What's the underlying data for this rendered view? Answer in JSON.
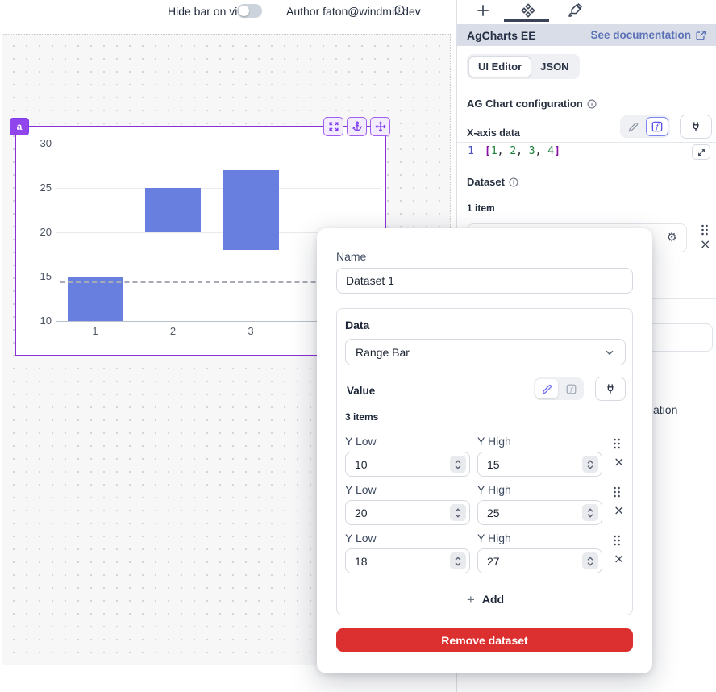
{
  "topbar": {
    "hide_bar_label": "Hide bar on view",
    "toggle_state": "off",
    "author_label": "Author faton@windmill.dev"
  },
  "canvas": {
    "component_badge": "a"
  },
  "chart_data": {
    "type": "bar",
    "variant": "vertical-range-bar",
    "x": [
      1,
      2,
      3,
      4
    ],
    "series": [
      {
        "name": "Dataset 1",
        "ranges": [
          [
            10,
            15
          ],
          [
            20,
            25
          ],
          [
            18,
            27
          ]
        ]
      }
    ],
    "ylim": [
      10,
      30
    ],
    "yticks": [
      10,
      15,
      20,
      25,
      30
    ],
    "xticks": [
      "1",
      "2",
      "3",
      "4"
    ],
    "grid": true,
    "legend": "none",
    "bar_color": "#687fe0",
    "crosshair_y": 14.5
  },
  "panel": {
    "title": "AgCharts EE",
    "doc_link_label": "See documentation",
    "editor_tabs": {
      "ui": "UI Editor",
      "json": "JSON"
    },
    "config_label": "AG Chart configuration",
    "xaxis_label": "X-axis data",
    "code_line_number": "1",
    "code_content": "[1, 2, 3, 4]",
    "dataset_label": "Dataset",
    "items_count": "1 item",
    "occluded_fragment": "ation"
  },
  "modal": {
    "name_label": "Name",
    "name_value": "Dataset 1",
    "data_label": "Data",
    "data_type_value": "Range Bar",
    "value_label": "Value",
    "items_count": "3 items",
    "rows": [
      {
        "low_label": "Y Low",
        "high_label": "Y High",
        "low": "10",
        "high": "15"
      },
      {
        "low_label": "Y Low",
        "high_label": "Y High",
        "low": "20",
        "high": "25"
      },
      {
        "low_label": "Y Low",
        "high_label": "Y High",
        "low": "18",
        "high": "27"
      }
    ],
    "add_label": "Add",
    "remove_label": "Remove dataset"
  },
  "colors": {
    "accent_purple": "#7c3aed",
    "bar_blue": "#687fe0",
    "danger_red": "#dc2f2f",
    "link_blue": "#5c72b7",
    "header_bg": "#d9dde8"
  }
}
